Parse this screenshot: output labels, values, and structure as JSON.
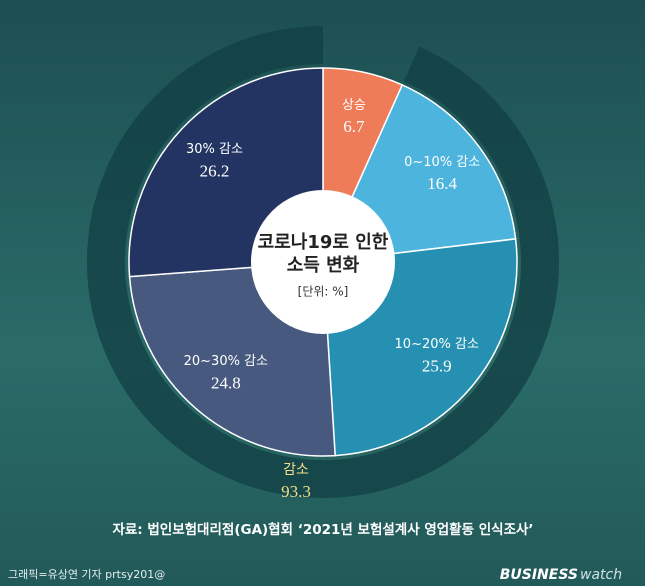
{
  "chart_data": {
    "type": "pie",
    "title_lines": [
      "코로나19로 인한",
      "소득 변화"
    ],
    "unit": "[단위: %]",
    "categories": [
      "상승",
      "0~10% 감소",
      "10~20% 감소",
      "20~30% 감소",
      "30% 감소"
    ],
    "values": [
      6.7,
      16.4,
      25.9,
      24.8,
      26.2
    ],
    "colors": [
      "#ef7c58",
      "#4db4dd",
      "#2590b1",
      "#47597f",
      "#233462"
    ],
    "ring": {
      "label": "감소",
      "value": 93.3,
      "color": "#123f44"
    },
    "source": "자료: 법인보험대리점(GA)협회 ‘2021년 보험설계사 영업활동 인식조사’",
    "credit": "그래픽=유상연 기자 prtsy201@",
    "brand": [
      "BUSINESS",
      "watch"
    ]
  }
}
